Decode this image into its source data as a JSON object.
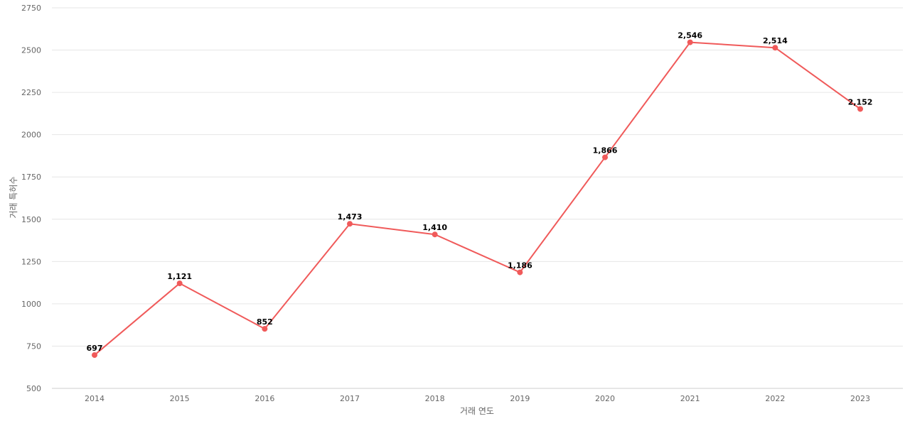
{
  "chart_data": {
    "type": "line",
    "title": "",
    "xlabel": "거래 연도",
    "ylabel": "거래 특허수",
    "categories": [
      "2014",
      "2015",
      "2016",
      "2017",
      "2018",
      "2019",
      "2020",
      "2021",
      "2022",
      "2023"
    ],
    "series": [
      {
        "values": [
          697,
          1121,
          852,
          1473,
          1410,
          1186,
          1866,
          2546,
          2514,
          2152
        ],
        "data_labels": [
          "697",
          "1,121",
          "852",
          "1,473",
          "1,410",
          "1,186",
          "1,866",
          "2,546",
          "2,514",
          "2,152"
        ],
        "color": "#f05a5a"
      }
    ],
    "ylim": [
      500,
      2750
    ],
    "yticks": [
      "500",
      "750",
      "1000",
      "1250",
      "1500",
      "1750",
      "2000",
      "2250",
      "2500",
      "2750"
    ],
    "grid": true,
    "legend": "none"
  }
}
